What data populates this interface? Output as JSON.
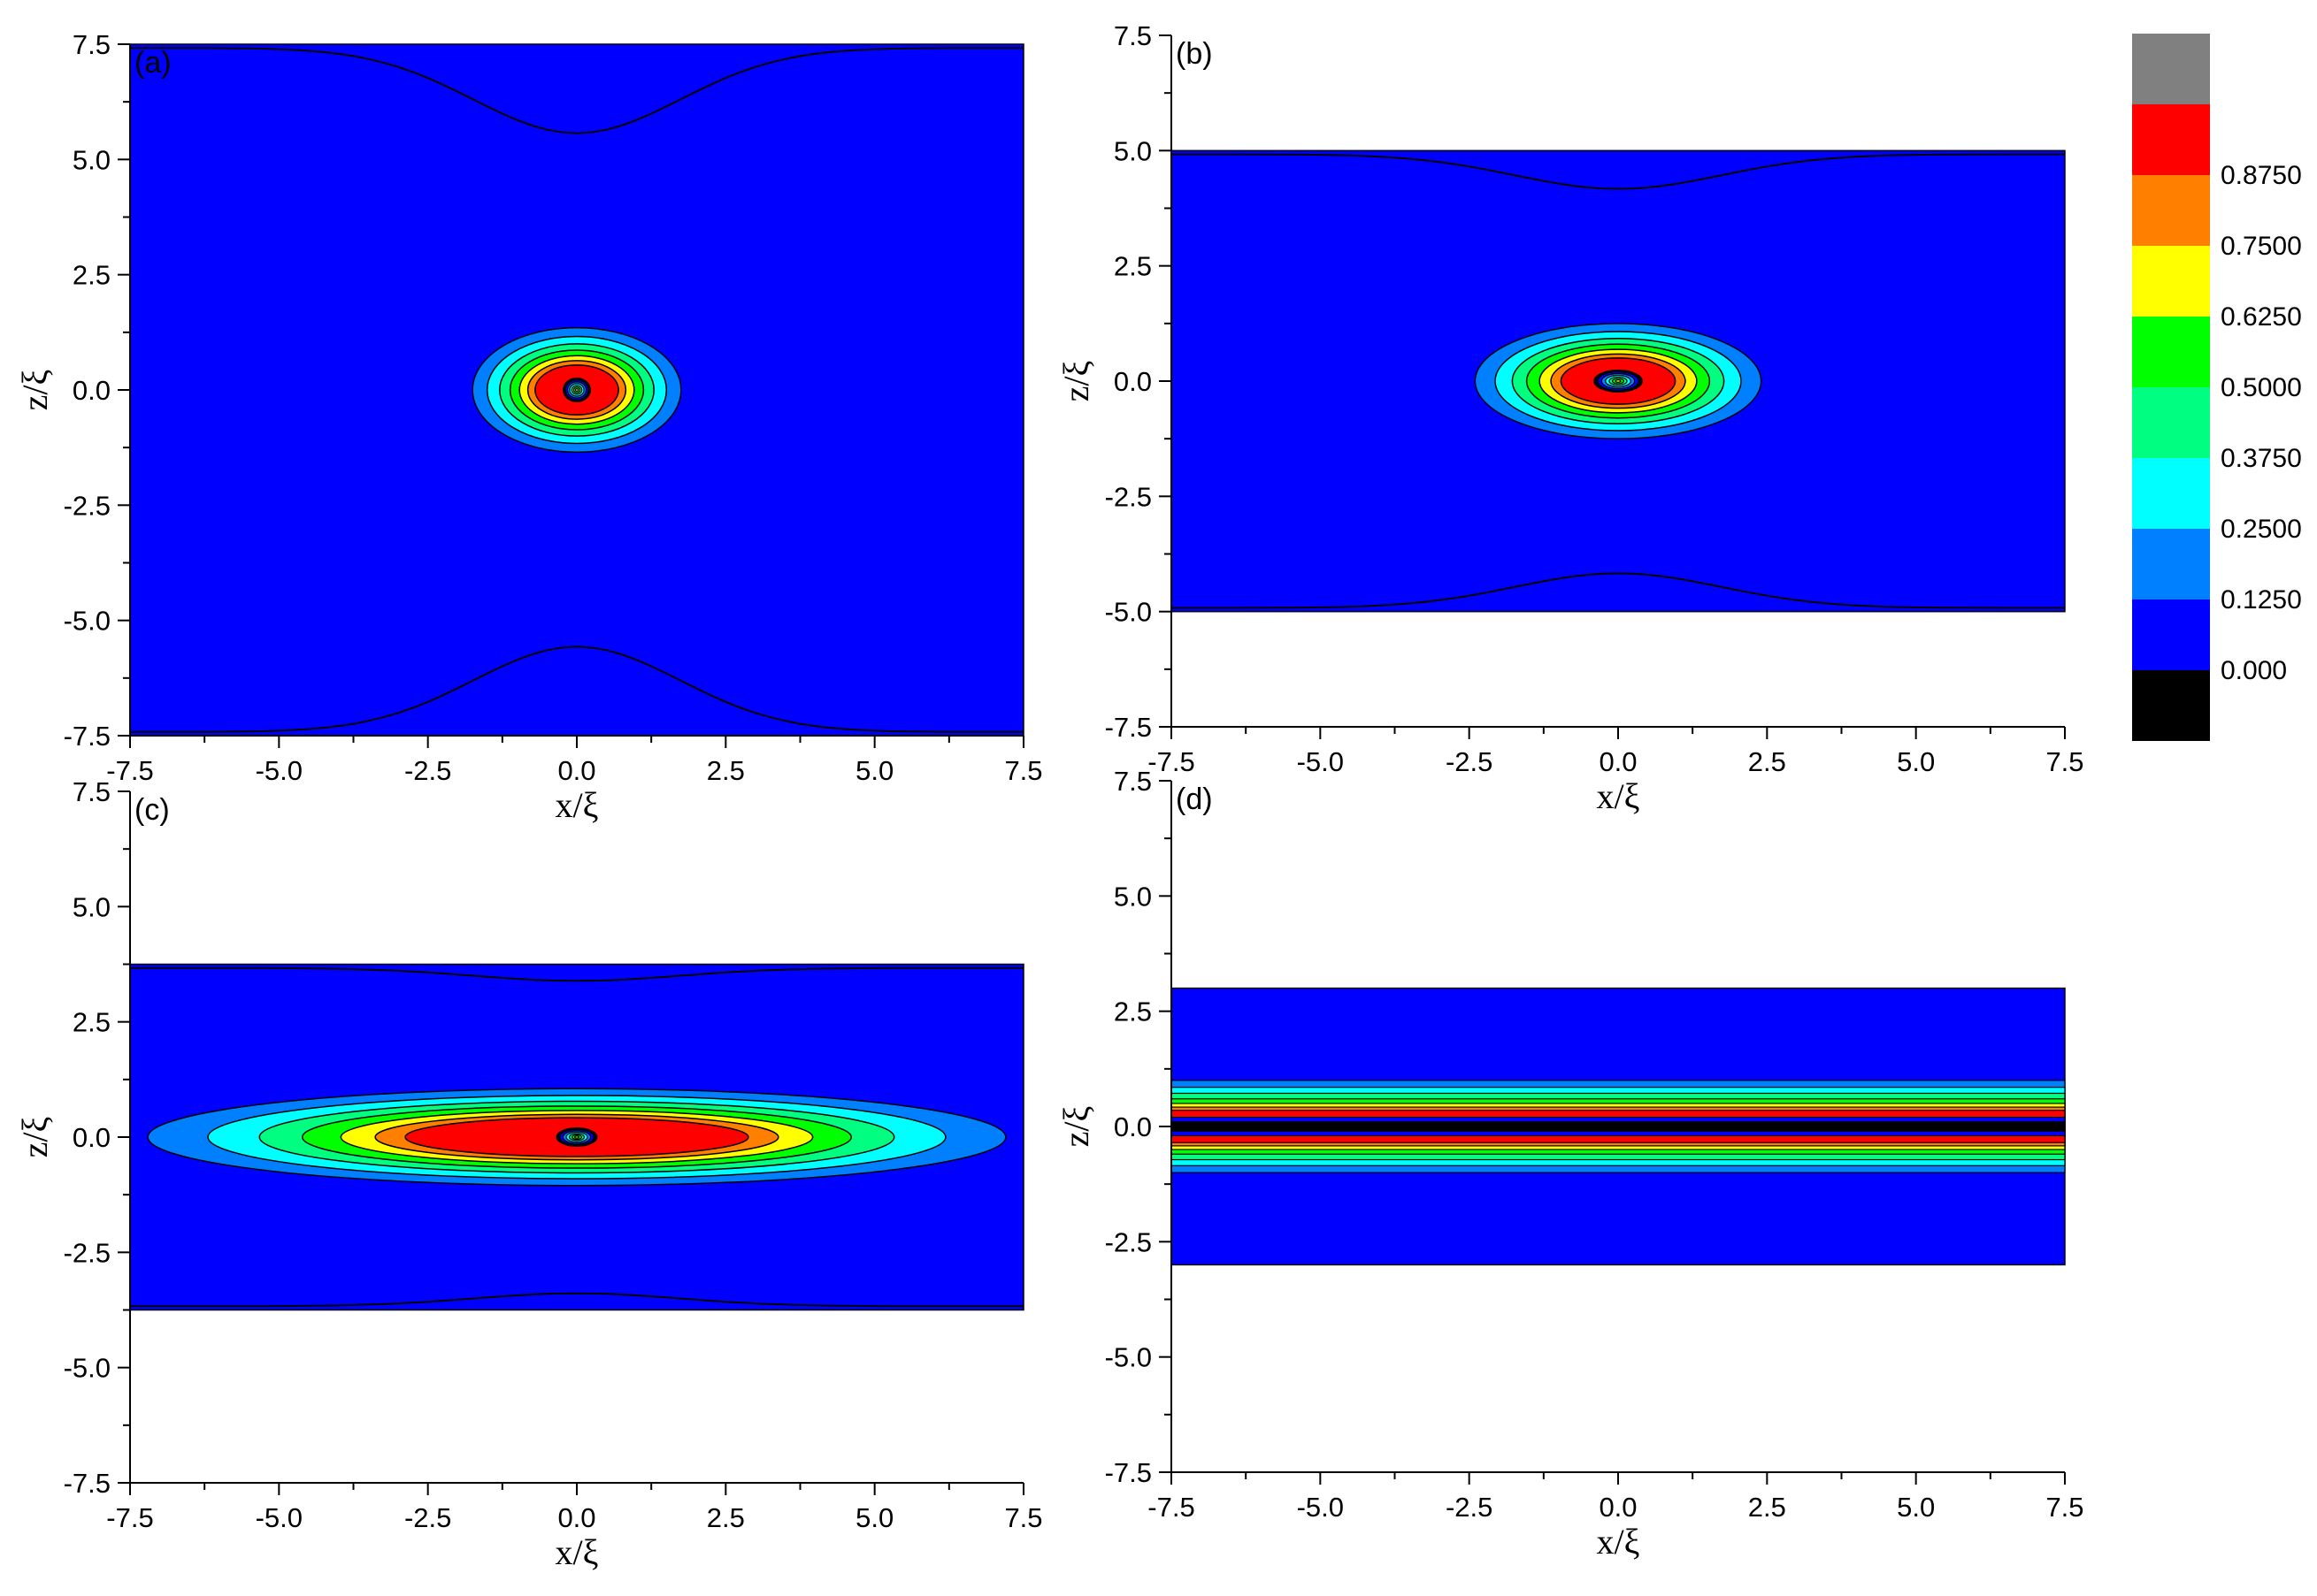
{
  "chart_data": [
    {
      "type": "heatmap",
      "panel_label": "(a)",
      "xlabel": "x/ξ",
      "ylabel": "z/ξ",
      "xlim": [
        -7.5,
        7.5
      ],
      "ylim": [
        -7.5,
        7.5
      ],
      "x_ticks": [
        "-7.5",
        "-5.0",
        "-2.5",
        "0.0",
        "2.5",
        "5.0",
        "7.5"
      ],
      "y_ticks": [
        "-7.5",
        "-5.0",
        "-2.5",
        "0.0",
        "2.5",
        "5.0",
        "7.5"
      ],
      "slab_z_half_width": 7.5,
      "vortex_radius_x": 1.75,
      "vortex_radius_z": 1.35,
      "boundary_dip": 1.85,
      "layered": false
    },
    {
      "type": "heatmap",
      "panel_label": "(b)",
      "xlabel": "x/ξ",
      "ylabel": "z/ξ",
      "xlim": [
        -7.5,
        7.5
      ],
      "ylim": [
        -7.5,
        7.5
      ],
      "x_ticks": [
        "-7.5",
        "-5.0",
        "-2.5",
        "0.0",
        "2.5",
        "5.0",
        "7.5"
      ],
      "y_ticks": [
        "-7.5",
        "-5.0",
        "-2.5",
        "0.0",
        "2.5",
        "5.0",
        "7.5"
      ],
      "slab_z_half_width": 5.0,
      "vortex_radius_x": 2.4,
      "vortex_radius_z": 1.25,
      "boundary_dip": 0.75,
      "layered": false
    },
    {
      "type": "heatmap",
      "panel_label": "(c)",
      "xlabel": "x/ξ",
      "ylabel": "z/ξ",
      "xlim": [
        -7.5,
        7.5
      ],
      "ylim": [
        -7.5,
        7.5
      ],
      "x_ticks": [
        "-7.5",
        "-5.0",
        "-2.5",
        "0.0",
        "2.5",
        "5.0",
        "7.5"
      ],
      "y_ticks": [
        "-7.5",
        "-5.0",
        "-2.5",
        "0.0",
        "2.5",
        "5.0",
        "7.5"
      ],
      "slab_z_half_width": 3.75,
      "vortex_radius_x": 7.2,
      "vortex_radius_z": 1.05,
      "boundary_dip": 0.28,
      "layered": false
    },
    {
      "type": "heatmap",
      "panel_label": "(d)",
      "xlabel": "x/ξ",
      "ylabel": "z/ξ",
      "xlim": [
        -7.5,
        7.5
      ],
      "ylim": [
        -7.5,
        7.5
      ],
      "x_ticks": [
        "-7.5",
        "-5.0",
        "-2.5",
        "0.0",
        "2.5",
        "5.0",
        "7.5"
      ],
      "y_ticks": [
        "-7.5",
        "-5.0",
        "-2.5",
        "0.0",
        "2.5",
        "5.0",
        "7.5"
      ],
      "slab_z_half_width": 3.0,
      "vortex_radius_x": 0,
      "vortex_radius_z": 1.0,
      "boundary_dip": 0,
      "layered": true
    }
  ],
  "colorbar": {
    "levels": [
      "",
      "",
      "0.8750",
      "0.7500",
      "0.6250",
      "0.5000",
      "0.3750",
      "0.2500",
      "0.1250",
      "0.000",
      ""
    ],
    "colors": [
      "#808080",
      "#ff0000",
      "#ff8000",
      "#ffff00",
      "#00ff00",
      "#00ff80",
      "#00ffff",
      "#0080ff",
      "#0000ff",
      "#000000"
    ]
  }
}
